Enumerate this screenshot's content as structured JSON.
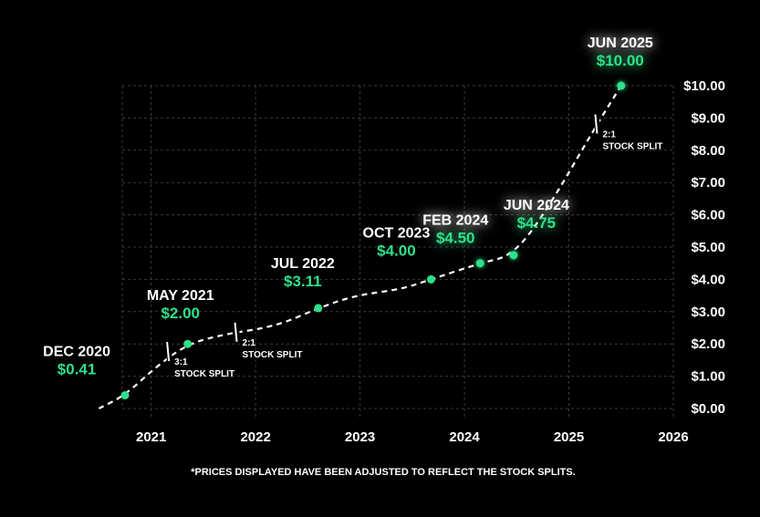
{
  "chart_data": {
    "type": "line",
    "title": "",
    "xlabel": "",
    "ylabel": "",
    "xlim": [
      2020.4,
      2026
    ],
    "ylim": [
      0,
      10
    ],
    "x_ticks": [
      "2021",
      "2022",
      "2023",
      "2024",
      "2025",
      "2026"
    ],
    "y_ticks": [
      "$0.00",
      "$1.00",
      "$2.00",
      "$3.00",
      "$4.00",
      "$5.00",
      "$6.00",
      "$7.00",
      "$8.00",
      "$9.00",
      "$10.00"
    ],
    "grid": true,
    "colors": {
      "line": "#ffffff",
      "point": "#2fe08a",
      "price": "#2fe08a",
      "grid": "#3a3a3a",
      "background": "#000000"
    },
    "line_points": [
      {
        "x": 2020.5,
        "y": 0.0
      },
      {
        "x": 2020.75,
        "y": 0.41
      },
      {
        "x": 2021.05,
        "y": 1.3
      },
      {
        "x": 2021.35,
        "y": 2.0
      },
      {
        "x": 2021.7,
        "y": 2.3
      },
      {
        "x": 2022.2,
        "y": 2.55
      },
      {
        "x": 2022.6,
        "y": 3.11
      },
      {
        "x": 2022.95,
        "y": 3.5
      },
      {
        "x": 2023.4,
        "y": 3.7
      },
      {
        "x": 2023.68,
        "y": 4.0
      },
      {
        "x": 2024.15,
        "y": 4.5
      },
      {
        "x": 2024.47,
        "y": 4.75
      },
      {
        "x": 2024.8,
        "y": 6.2
      },
      {
        "x": 2025.25,
        "y": 8.7
      },
      {
        "x": 2025.5,
        "y": 10.0
      }
    ],
    "annotations": [
      {
        "date": "DEC 2020",
        "price": "$0.41",
        "x": 2020.75,
        "y": 0.41
      },
      {
        "date": "MAY 2021",
        "price": "$2.00",
        "x": 2021.35,
        "y": 2.0
      },
      {
        "date": "JUL 2022",
        "price": "$3.11",
        "x": 2022.6,
        "y": 3.11
      },
      {
        "date": "OCT 2023",
        "price": "$4.00",
        "x": 2023.68,
        "y": 4.0
      },
      {
        "date": "FEB 2024",
        "price": "$4.50",
        "x": 2024.15,
        "y": 4.5
      },
      {
        "date": "JUN 2024",
        "price": "$4.75",
        "x": 2024.47,
        "y": 4.75
      },
      {
        "date": "JUN 2025",
        "price": "$10.00",
        "x": 2025.5,
        "y": 10.0
      }
    ],
    "stock_splits": [
      {
        "ratio": "3:1",
        "label": "STOCK SPLIT",
        "x": 2021.17,
        "y": 1.75
      },
      {
        "ratio": "2:1",
        "label": "STOCK SPLIT",
        "x": 2021.82,
        "y": 2.35
      },
      {
        "ratio": "2:1",
        "label": "STOCK SPLIT",
        "x": 2025.27,
        "y": 8.8
      }
    ],
    "footnote": "*PRICES DISPLAYED HAVE BEEN ADJUSTED TO REFLECT THE STOCK SPLITS."
  }
}
